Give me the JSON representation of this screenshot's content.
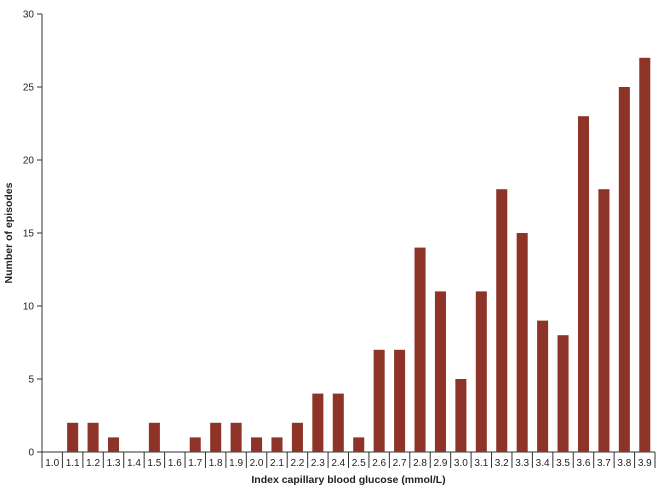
{
  "chart_data": {
    "type": "bar",
    "title": "",
    "xlabel": "Index capillary blood glucose (mmol/L)",
    "ylabel": "Number of episodes",
    "ylim": [
      0,
      30
    ],
    "yticks": [
      0,
      5,
      10,
      15,
      20,
      25,
      30
    ],
    "grid": false,
    "categories": [
      "1.0",
      "1.1",
      "1.2",
      "1.3",
      "1.4",
      "1.5",
      "1.6",
      "1.7",
      "1.8",
      "1.9",
      "2.0",
      "2.1",
      "2.2",
      "2.3",
      "2.4",
      "2.5",
      "2.6",
      "2.7",
      "2.8",
      "2.9",
      "3.0",
      "3.1",
      "3.2",
      "3.3",
      "3.4",
      "3.5",
      "3.6",
      "3.7",
      "3.8",
      "3.9"
    ],
    "values": [
      0,
      2,
      2,
      1,
      0,
      2,
      0,
      1,
      2,
      2,
      1,
      1,
      2,
      4,
      4,
      1,
      7,
      7,
      14,
      11,
      5,
      11,
      18,
      15,
      9,
      8,
      23,
      18,
      25,
      27
    ],
    "bar_color": "#8e3327"
  }
}
